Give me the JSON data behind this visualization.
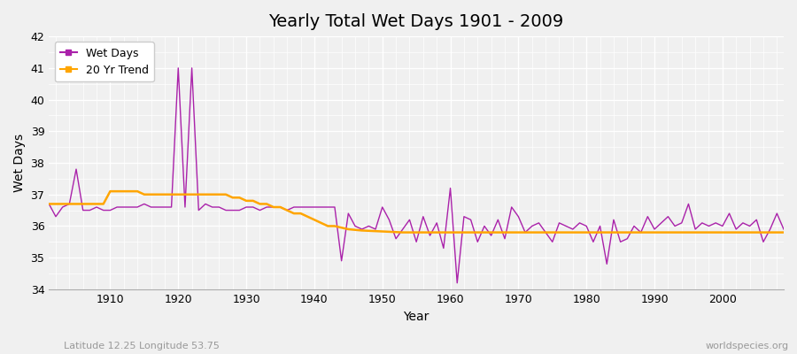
{
  "title": "Yearly Total Wet Days 1901 - 2009",
  "xlabel": "Year",
  "ylabel": "Wet Days",
  "subtitle_left": "Latitude 12.25 Longitude 53.75",
  "subtitle_right": "worldspecies.org",
  "wet_days_color": "#AA22AA",
  "trend_color": "#FFA500",
  "bg_color": "#F0F0F0",
  "ylim": [
    34,
    42
  ],
  "xlim": [
    1901,
    2009
  ],
  "years": [
    1901,
    1902,
    1903,
    1904,
    1905,
    1906,
    1907,
    1908,
    1909,
    1910,
    1911,
    1912,
    1913,
    1914,
    1915,
    1916,
    1917,
    1918,
    1919,
    1920,
    1921,
    1922,
    1923,
    1924,
    1925,
    1926,
    1927,
    1928,
    1929,
    1930,
    1931,
    1932,
    1933,
    1934,
    1935,
    1936,
    1937,
    1938,
    1939,
    1940,
    1941,
    1942,
    1943,
    1944,
    1945,
    1946,
    1947,
    1948,
    1949,
    1950,
    1951,
    1952,
    1953,
    1954,
    1955,
    1956,
    1957,
    1958,
    1959,
    1960,
    1961,
    1962,
    1963,
    1964,
    1965,
    1966,
    1967,
    1968,
    1969,
    1970,
    1971,
    1972,
    1973,
    1974,
    1975,
    1976,
    1977,
    1978,
    1979,
    1980,
    1981,
    1982,
    1983,
    1984,
    1985,
    1986,
    1987,
    1988,
    1989,
    1990,
    1991,
    1992,
    1993,
    1994,
    1995,
    1996,
    1997,
    1998,
    1999,
    2000,
    2001,
    2002,
    2003,
    2004,
    2005,
    2006,
    2007,
    2008,
    2009
  ],
  "wet_days": [
    36.7,
    36.3,
    36.6,
    36.7,
    37.8,
    36.5,
    36.5,
    36.6,
    36.5,
    36.5,
    36.6,
    36.6,
    36.6,
    36.6,
    36.7,
    36.6,
    36.6,
    36.6,
    36.6,
    41.0,
    36.6,
    41.0,
    36.5,
    36.7,
    36.6,
    36.6,
    36.5,
    36.5,
    36.5,
    36.6,
    36.6,
    36.5,
    36.6,
    36.6,
    36.6,
    36.5,
    36.6,
    36.6,
    36.6,
    36.6,
    36.6,
    36.6,
    36.6,
    34.9,
    36.4,
    36.0,
    35.9,
    36.0,
    35.9,
    36.6,
    36.2,
    35.6,
    35.9,
    36.2,
    35.5,
    36.3,
    35.7,
    36.1,
    35.3,
    37.2,
    34.2,
    36.3,
    36.2,
    35.5,
    36.0,
    35.7,
    36.2,
    35.6,
    36.6,
    36.3,
    35.8,
    36.0,
    36.1,
    35.8,
    35.5,
    36.1,
    36.0,
    35.9,
    36.1,
    36.0,
    35.5,
    36.0,
    34.8,
    36.2,
    35.5,
    35.6,
    36.0,
    35.8,
    36.3,
    35.9,
    36.1,
    36.3,
    36.0,
    36.1,
    36.7,
    35.9,
    36.1,
    36.0,
    36.1,
    36.0,
    36.4,
    35.9,
    36.1,
    36.0,
    36.2,
    35.5,
    35.9,
    36.4,
    35.9
  ],
  "trend_values": [
    36.7,
    36.7,
    36.7,
    36.7,
    36.7,
    36.7,
    36.7,
    36.7,
    36.7,
    37.1,
    37.1,
    37.1,
    37.1,
    37.1,
    37.0,
    37.0,
    37.0,
    37.0,
    37.0,
    37.0,
    37.0,
    37.0,
    37.0,
    37.0,
    37.0,
    37.0,
    37.0,
    36.9,
    36.9,
    36.8,
    36.8,
    36.7,
    36.7,
    36.6,
    36.6,
    36.5,
    36.4,
    36.4,
    36.3,
    36.2,
    36.1,
    36.0,
    36.0,
    35.95,
    35.9,
    35.88,
    35.86,
    35.85,
    35.84,
    35.83,
    35.82,
    35.81,
    35.8,
    35.8,
    35.8,
    35.8,
    35.8,
    35.8,
    35.8,
    35.8,
    35.8,
    35.8,
    35.8,
    35.8,
    35.8,
    35.8,
    35.8,
    35.8,
    35.8,
    35.8,
    35.8,
    35.8,
    35.8,
    35.8,
    35.8,
    35.8,
    35.8,
    35.8,
    35.8,
    35.8,
    35.8,
    35.8,
    35.8,
    35.8,
    35.8,
    35.8,
    35.8,
    35.8,
    35.8,
    35.8,
    35.8,
    35.8,
    35.8,
    35.8,
    35.8,
    35.8,
    35.8,
    35.8,
    35.8,
    35.8,
    35.8,
    35.8,
    35.8,
    35.8,
    35.8,
    35.8,
    35.8,
    35.8,
    35.8
  ],
  "yticks": [
    34,
    35,
    36,
    37,
    38,
    39,
    40,
    41,
    42
  ],
  "xticks": [
    1910,
    1920,
    1930,
    1940,
    1950,
    1960,
    1970,
    1980,
    1990,
    2000
  ],
  "title_fontsize": 14,
  "label_fontsize": 10,
  "tick_fontsize": 9,
  "legend_fontsize": 9
}
